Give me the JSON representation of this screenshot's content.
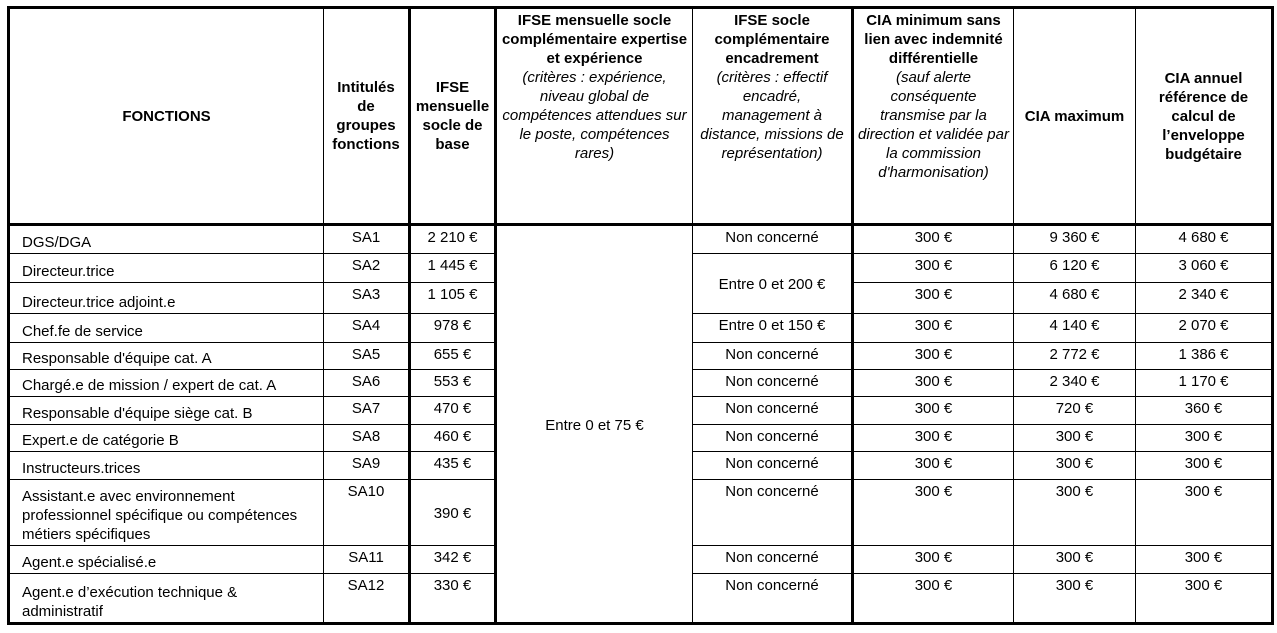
{
  "headers": [
    {
      "title": "FONCTIONS",
      "note": ""
    },
    {
      "title": "Intitulés de groupes fonctions",
      "note": ""
    },
    {
      "title": "IFSE mensuelle socle de base",
      "note": ""
    },
    {
      "title": "IFSE mensuelle socle complémentaire expertise et expérience",
      "note": "(critères : expérience, niveau global de compétences attendues sur le poste, compétences rares)"
    },
    {
      "title": "IFSE socle complémentaire encadrement",
      "note": "(critères : effectif encadré, management à distance, missions de représentation)"
    },
    {
      "title": "CIA minimum sans lien avec indemnité différentielle",
      "note": "(sauf alerte conséquente transmise par la direction et validée par la commission d'harmonisation)"
    },
    {
      "title": "CIA maximum",
      "note": ""
    },
    {
      "title": "CIA annuel référence de calcul de l’enveloppe budgétaire",
      "note": ""
    }
  ],
  "expertise_all": "Entre 0 et 75 €",
  "rows": [
    {
      "fonction": "DGS/DGA",
      "groupe": "SA1",
      "ifse_base": "2 210 €",
      "encadrement": "Non concerné",
      "cia_min": "300 €",
      "cia_max": "9 360 €",
      "cia_ref": "4 680 €"
    },
    {
      "fonction": "Directeur.trice",
      "groupe": "SA2",
      "ifse_base": "1 445 €",
      "encadrement": "Entre 0 et 200 €",
      "cia_min": "300 €",
      "cia_max": "6 120 €",
      "cia_ref": "3 060 €"
    },
    {
      "fonction": "Directeur.trice adjoint.e",
      "groupe": "SA3",
      "ifse_base": "1 105 €",
      "encadrement": null,
      "cia_min": "300 €",
      "cia_max": "4 680 €",
      "cia_ref": "2 340 €"
    },
    {
      "fonction": "Chef.fe de service",
      "groupe": "SA4",
      "ifse_base": "978 €",
      "encadrement": "Entre 0 et 150 €",
      "cia_min": "300 €",
      "cia_max": "4 140 €",
      "cia_ref": "2 070 €"
    },
    {
      "fonction": "Responsable d'équipe cat. A",
      "groupe": "SA5",
      "ifse_base": "655 €",
      "encadrement": "Non concerné",
      "cia_min": "300 €",
      "cia_max": "2 772 €",
      "cia_ref": "1 386 €"
    },
    {
      "fonction": "Chargé.e de mission / expert de cat. A",
      "groupe": "SA6",
      "ifse_base": "553 €",
      "encadrement": "Non concerné",
      "cia_min": "300 €",
      "cia_max": "2 340 €",
      "cia_ref": "1 170 €"
    },
    {
      "fonction": "Responsable d'équipe siège cat. B",
      "groupe": "SA7",
      "ifse_base": "470 €",
      "encadrement": "Non concerné",
      "cia_min": "300 €",
      "cia_max": "720 €",
      "cia_ref": "360 €"
    },
    {
      "fonction": "Expert.e de catégorie B",
      "groupe": "SA8",
      "ifse_base": "460 €",
      "encadrement": "Non concerné",
      "cia_min": "300 €",
      "cia_max": "300 €",
      "cia_ref": "300 €"
    },
    {
      "fonction": "Instructeurs.trices",
      "groupe": "SA9",
      "ifse_base": "435 €",
      "encadrement": "Non concerné",
      "cia_min": "300 €",
      "cia_max": "300 €",
      "cia_ref": "300 €"
    },
    {
      "fonction": "Assistant.e avec environnement professionnel spécifique ou compétences métiers spécifiques",
      "groupe": "SA10",
      "ifse_base": "390 €",
      "encadrement": "Non concerné",
      "cia_min": "300 €",
      "cia_max": "300 €",
      "cia_ref": "300 €"
    },
    {
      "fonction": "Agent.e spécialisé.e",
      "groupe": "SA11",
      "ifse_base": "342 €",
      "encadrement": "Non concerné",
      "cia_min": "300 €",
      "cia_max": "300 €",
      "cia_ref": "300 €"
    },
    {
      "fonction": "Agent.e d’exécution technique & administratif",
      "groupe": "SA12",
      "ifse_base": "330 €",
      "encadrement": "Non concerné",
      "cia_min": "300 €",
      "cia_max": "300 €",
      "cia_ref": "300 €"
    }
  ]
}
